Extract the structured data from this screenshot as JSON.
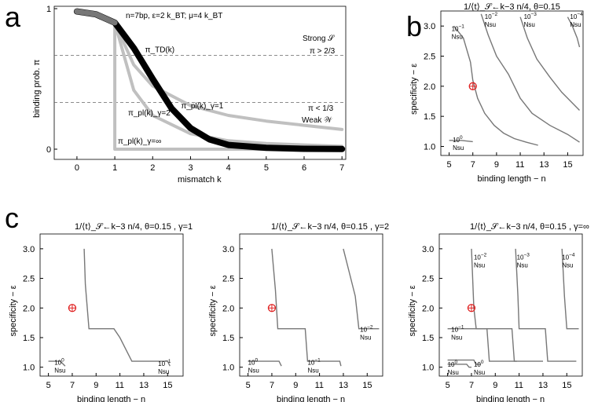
{
  "chart_data": [
    {
      "id": "a",
      "panel_letter": "a",
      "type": "line",
      "title": "n=7bp, ε=2 k_BT; μ=4 k_BT",
      "xlabel": "mismatch  k",
      "ylabel": "binding prob.  π",
      "xlim": [
        -0.6,
        7.1
      ],
      "ylim": [
        0,
        1
      ],
      "xticks": [
        "0",
        "1",
        "2",
        "3",
        "4",
        "5",
        "6",
        "7"
      ],
      "yticks": [
        "0",
        "1"
      ],
      "thresholds": [
        {
          "y": 0.667,
          "label": "Strong 𝒮",
          "sublabel": "π > 2/3"
        },
        {
          "y": 0.333,
          "label": "π < 1/3",
          "sublabel": "Weak 𝒲"
        }
      ],
      "series": [
        {
          "name": "π_TD(k)",
          "color": "#000000",
          "x": [
            0,
            0.5,
            1,
            1.5,
            2,
            2.5,
            3,
            3.5,
            4,
            5,
            6,
            7
          ],
          "y": [
            0.98,
            0.96,
            0.9,
            0.72,
            0.5,
            0.29,
            0.15,
            0.07,
            0.03,
            0.01,
            0.003,
            0.001
          ]
        },
        {
          "name": "π_pl(k)_γ=1",
          "color": "#c0c0c0",
          "x": [
            0,
            0.5,
            1,
            1.5,
            2,
            3,
            4,
            5,
            6,
            7
          ],
          "y": [
            0.98,
            0.96,
            0.9,
            0.6,
            0.45,
            0.31,
            0.24,
            0.2,
            0.17,
            0.14
          ]
        },
        {
          "name": "π_pl(k)_γ=2",
          "color": "#c0c0c0",
          "x": [
            0,
            0.5,
            1,
            1.5,
            2,
            3,
            4,
            5,
            6,
            7
          ],
          "y": [
            0.98,
            0.96,
            0.9,
            0.42,
            0.24,
            0.11,
            0.06,
            0.04,
            0.03,
            0.02
          ]
        },
        {
          "name": "π_pl(k)_γ=∞",
          "color": "#c0c0c0",
          "x": [
            0,
            0.5,
            1,
            1,
            1.5,
            7
          ],
          "y": [
            0.98,
            0.96,
            0.9,
            0.0,
            0.0,
            0.0
          ]
        }
      ],
      "labels": {
        "td": "π_TD(k)",
        "g1": "π_pl(k)_γ=1",
        "g2": "π_pl(k)_γ=2",
        "ginf": "π_pl(k)_γ=∞"
      }
    },
    {
      "id": "b",
      "panel_letter": "b",
      "type": "line",
      "title": "1/⟨t⟩_𝒮←k−3 n/4, θ=0.15",
      "xlabel": "binding length − n",
      "ylabel": "specificity − ε",
      "xlim": [
        4.3,
        16.3
      ],
      "ylim": [
        0.85,
        3.25
      ],
      "xticks": [
        5,
        7,
        9,
        11,
        13,
        15
      ],
      "yticks": [
        1.0,
        1.5,
        2.0,
        2.5,
        3.0
      ],
      "marker": {
        "x": 7,
        "y": 2.0
      },
      "series": [
        {
          "name": "10^0 Nsu",
          "x": [
            5.0,
            6.0,
            7.0
          ],
          "y": [
            1.1,
            1.1,
            1.08
          ]
        },
        {
          "name": "10^-1 Nsu",
          "x": [
            5.4,
            6.2,
            6.8,
            7.0,
            7.4,
            8.0,
            8.8,
            9.6,
            10.5,
            11.5,
            12.5
          ],
          "y": [
            3.0,
            2.8,
            2.4,
            2.1,
            1.8,
            1.55,
            1.35,
            1.22,
            1.13,
            1.07,
            1.02
          ]
        },
        {
          "name": "10^-2 Nsu",
          "x": [
            7.7,
            8.3,
            9.0,
            10.0,
            11.0,
            12.0,
            13.5,
            15.0,
            16.0
          ],
          "y": [
            3.2,
            2.85,
            2.5,
            2.2,
            1.8,
            1.55,
            1.35,
            1.2,
            1.07
          ]
        },
        {
          "name": "10^-3 Nsu",
          "x": [
            11.0,
            11.6,
            12.4,
            13.5,
            14.5,
            16.0
          ],
          "y": [
            3.15,
            2.8,
            2.45,
            2.15,
            1.9,
            1.6
          ]
        },
        {
          "name": "10^-4 Nsu",
          "x": [
            15.0,
            15.4,
            15.8,
            16.0
          ],
          "y": [
            3.15,
            3.0,
            2.8,
            2.65
          ]
        }
      ],
      "labels": [
        {
          "top": "10^−1",
          "bottom": "Nsu"
        },
        {
          "top": "10^−2",
          "bottom": "Nsu"
        },
        {
          "top": "10^−3",
          "bottom": "Nsu"
        },
        {
          "top": "10^−4",
          "bottom": "Nsu"
        },
        {
          "top": "10^0",
          "bottom": "Nsu"
        }
      ]
    },
    {
      "id": "c1",
      "panel_letter": "c",
      "type": "line",
      "title": "1/⟨t⟩_𝒮←k−3 n/4, θ=0.15 , γ=1",
      "xlabel": "binding length − n",
      "ylabel": "specificity − ε",
      "xlim": [
        4.3,
        16.3
      ],
      "ylim": [
        0.85,
        3.25
      ],
      "xticks": [
        5,
        7,
        9,
        11,
        13,
        15
      ],
      "yticks": [
        1.0,
        1.5,
        2.0,
        2.5,
        3.0
      ],
      "marker": {
        "x": 7,
        "y": 2.0
      },
      "series": [
        {
          "name": "10^0 Nsu",
          "x": [
            5.0,
            6.0,
            6.4
          ],
          "y": [
            1.1,
            1.1,
            1.02
          ]
        },
        {
          "name": "10^-1 Nsu",
          "x": [
            8.0,
            8.1,
            8.4,
            10.5,
            11.0,
            11.5,
            12.0,
            15.0,
            15.2
          ],
          "y": [
            3.0,
            2.4,
            1.65,
            1.65,
            1.5,
            1.3,
            1.1,
            1.1,
            1.02
          ]
        }
      ],
      "labels": [
        {
          "top": "10^0",
          "bottom": "Nsu"
        },
        {
          "top": "10^−1",
          "bottom": "Nsu"
        }
      ]
    },
    {
      "id": "c2",
      "type": "line",
      "title": "1/⟨t⟩_𝒮←k−3 n/4, θ=0.15 , γ=2",
      "xlabel": "binding length − n",
      "ylabel": "specificity − ε",
      "xlim": [
        4.3,
        16.3
      ],
      "ylim": [
        0.85,
        3.25
      ],
      "xticks": [
        5,
        7,
        9,
        11,
        13,
        15
      ],
      "yticks": [
        1.0,
        1.5,
        2.0,
        2.5,
        3.0
      ],
      "marker": {
        "x": 7,
        "y": 2.0
      },
      "series": [
        {
          "name": "10^0 Nsu",
          "x": [
            5.0,
            7.6,
            7.8
          ],
          "y": [
            1.1,
            1.1,
            1.02
          ]
        },
        {
          "name": "10^-1 Nsu",
          "x": [
            7.0,
            7.3,
            7.5,
            9.8,
            10.0,
            12.7,
            12.8
          ],
          "y": [
            3.0,
            2.3,
            1.65,
            1.65,
            1.1,
            1.1,
            1.02
          ]
        },
        {
          "name": "10^-2 Nsu",
          "x": [
            13.0,
            13.5,
            14.0,
            14.3,
            16.0
          ],
          "y": [
            3.0,
            2.6,
            2.2,
            1.65,
            1.65
          ]
        }
      ],
      "labels": [
        {
          "top": "10^0",
          "bottom": "Nsu"
        },
        {
          "top": "10^−1",
          "bottom": "Nsu"
        },
        {
          "top": "10^−2",
          "bottom": "Nsu"
        }
      ]
    },
    {
      "id": "c3",
      "type": "line",
      "title": "1/⟨t⟩_𝒮←k−3 n/4, θ=0.15 , γ=∞",
      "xlabel": "binding length − n",
      "ylabel": "specificity − ε",
      "xlim": [
        4.3,
        16.3
      ],
      "ylim": [
        0.85,
        3.25
      ],
      "xticks": [
        5,
        7,
        9,
        11,
        13,
        15
      ],
      "yticks": [
        1.0,
        1.5,
        2.0,
        2.5,
        3.0
      ],
      "marker": {
        "x": 7,
        "y": 2.0
      },
      "series": [
        {
          "name": "10^0 Nsu",
          "x": [
            5.0,
            6.6,
            6.8,
            7.0
          ],
          "y": [
            1.05,
            1.05,
            1.0,
            1.0
          ]
        },
        {
          "name": "10^0 Nsu (2)",
          "x": [
            5.0,
            7.2,
            7.4,
            7.8
          ],
          "y": [
            1.12,
            1.12,
            1.05,
            1.05
          ]
        },
        {
          "name": "10^-1 Nsu",
          "x": [
            5.0,
            8.3,
            8.5,
            10.8
          ],
          "y": [
            1.65,
            1.65,
            1.1,
            1.1
          ]
        },
        {
          "name": "10^-2 Nsu",
          "x": [
            7.0,
            7.2,
            7.4,
            10.4,
            10.6,
            13.0
          ],
          "y": [
            3.0,
            2.0,
            1.65,
            1.65,
            1.1,
            1.1
          ]
        },
        {
          "name": "10^-3 Nsu",
          "x": [
            10.7,
            10.9,
            11.0,
            13.2,
            13.4,
            15.8
          ],
          "y": [
            3.0,
            2.2,
            1.65,
            1.65,
            1.1,
            1.1
          ]
        },
        {
          "name": "10^-4 Nsu",
          "x": [
            14.6,
            14.8,
            15.0,
            16.0
          ],
          "y": [
            3.0,
            2.2,
            1.65,
            1.65
          ]
        }
      ],
      "labels": [
        {
          "top": "10^−2",
          "bottom": "Nsu"
        },
        {
          "top": "10^−3",
          "bottom": "Nsu"
        },
        {
          "top": "10^−4",
          "bottom": "Nsu"
        },
        {
          "top": "10^−1",
          "bottom": "Nsu"
        },
        {
          "top": "10^0",
          "bottom": "Nsu"
        },
        {
          "top": "10^0",
          "bottom": "Nsu"
        }
      ]
    }
  ]
}
